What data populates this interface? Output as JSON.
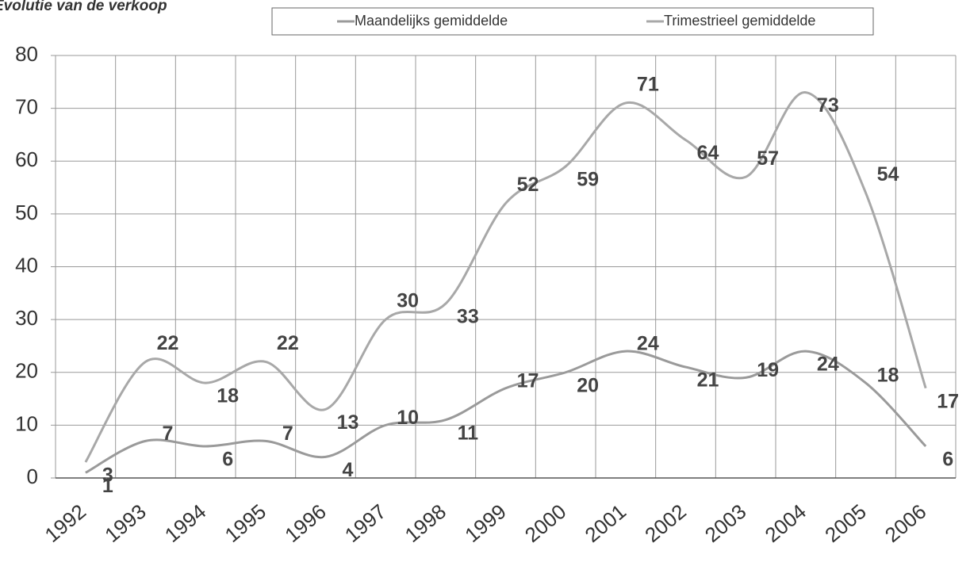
{
  "chart_data": {
    "type": "line",
    "title": "Evolutie van de verkoop",
    "categories": [
      "1992",
      "1993",
      "1994",
      "1995",
      "1996",
      "1997",
      "1998",
      "1999",
      "2000",
      "2001",
      "2002",
      "2003",
      "2004",
      "2005",
      "2006"
    ],
    "series": [
      {
        "name": "Maandelijks gemiddelde",
        "color": "#9a9a9a",
        "values": [
          1,
          7,
          6,
          7,
          4,
          10,
          11,
          17,
          20,
          24,
          21,
          19,
          24,
          18,
          6
        ]
      },
      {
        "name": "Trimestrieel gemiddelde",
        "color": "#a8a8a8",
        "values": [
          3,
          22,
          18,
          22,
          13,
          30,
          33,
          52,
          59,
          71,
          64,
          57,
          73,
          54,
          17
        ]
      }
    ],
    "ylim": [
      0,
      80
    ],
    "yticks": [
      0,
      10,
      20,
      30,
      40,
      50,
      60,
      70,
      80
    ],
    "grid": true,
    "legend": "top"
  }
}
